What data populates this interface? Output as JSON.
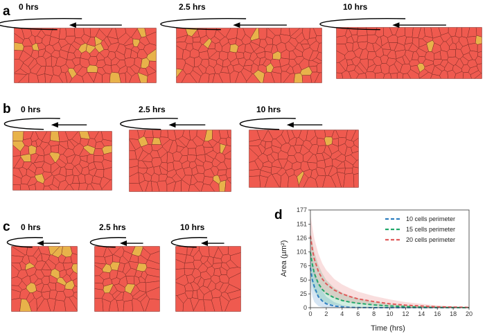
{
  "colors": {
    "cell_fill": "#ef5a4f",
    "cell_stroke": "#7a2a24",
    "marked_fill": "#e8b24a",
    "series_10": "#2f7fc1",
    "series_15": "#22a86a",
    "series_20": "#e05a5a"
  },
  "icons": {
    "rotation": "counterclockwise-rotation-arrow-icon"
  },
  "panels": [
    {
      "letter": "a",
      "tissues": [
        {
          "time": "0 hrs",
          "marked": 14
        },
        {
          "time": "2.5 hrs",
          "marked": 10
        },
        {
          "time": "10 hrs",
          "marked": 3
        }
      ]
    },
    {
      "letter": "b",
      "tissues": [
        {
          "time": "0 hrs",
          "marked": 10
        },
        {
          "time": "2.5 hrs",
          "marked": 6
        },
        {
          "time": "10 hrs",
          "marked": 2
        }
      ]
    },
    {
      "letter": "c",
      "tissues": [
        {
          "time": "0 hrs",
          "marked": 10
        },
        {
          "time": "2.5 hrs",
          "marked": 6
        },
        {
          "time": "10 hrs",
          "marked": 0
        }
      ]
    }
  ],
  "chart_data": {
    "panel_letter": "d",
    "type": "line",
    "xlabel": "Time (hrs)",
    "ylabel": "Area (µm²)",
    "xlim": [
      0,
      20
    ],
    "ylim": [
      0,
      177
    ],
    "xticks": [
      0,
      2,
      4,
      6,
      8,
      10,
      12,
      14,
      16,
      18,
      20
    ],
    "yticks": [
      0,
      25,
      50,
      76,
      101,
      126,
      151,
      177
    ],
    "legend_position": "top-right",
    "x": [
      0,
      0.25,
      0.5,
      1,
      1.5,
      2,
      3,
      4,
      5,
      6,
      8,
      10,
      12,
      14,
      16,
      18,
      20
    ],
    "series": [
      {
        "name": "10 cells perimeter",
        "color_key": "series_10",
        "values": [
          72,
          50,
          38,
          20,
          12,
          7,
          3,
          1.5,
          0.5,
          0.2,
          0,
          0,
          0,
          0,
          0,
          0,
          0
        ],
        "lower": [
          40,
          20,
          10,
          3,
          1,
          0,
          0,
          0,
          0,
          0,
          0,
          0,
          0,
          0,
          0,
          0,
          0
        ],
        "upper": [
          105,
          85,
          68,
          45,
          30,
          20,
          10,
          5,
          2,
          1,
          0,
          0,
          0,
          0,
          0,
          0,
          0
        ]
      },
      {
        "name": "15 cells perimeter",
        "color_key": "series_15",
        "values": [
          100,
          78,
          62,
          44,
          33,
          26,
          18,
          13,
          10,
          8,
          5,
          3,
          2,
          1,
          0.5,
          0.2,
          0
        ],
        "lower": [
          60,
          40,
          30,
          20,
          12,
          8,
          5,
          3,
          2,
          1,
          0,
          0,
          0,
          0,
          0,
          0,
          0
        ],
        "upper": [
          140,
          118,
          100,
          78,
          62,
          50,
          36,
          27,
          21,
          17,
          11,
          7,
          4,
          2,
          1,
          0.5,
          0
        ]
      },
      {
        "name": "20 cells perimeter",
        "color_key": "series_20",
        "values": [
          130,
          105,
          88,
          66,
          52,
          43,
          32,
          25,
          20,
          16,
          11,
          7,
          4.5,
          3,
          1.5,
          1,
          0.5
        ],
        "lower": [
          95,
          70,
          55,
          40,
          30,
          24,
          17,
          12,
          9,
          7,
          4,
          2,
          1,
          0.5,
          0,
          0,
          0
        ],
        "upper": [
          168,
          145,
          125,
          98,
          80,
          68,
          52,
          42,
          35,
          29,
          21,
          15,
          10,
          7,
          4,
          2.5,
          1
        ]
      }
    ]
  }
}
